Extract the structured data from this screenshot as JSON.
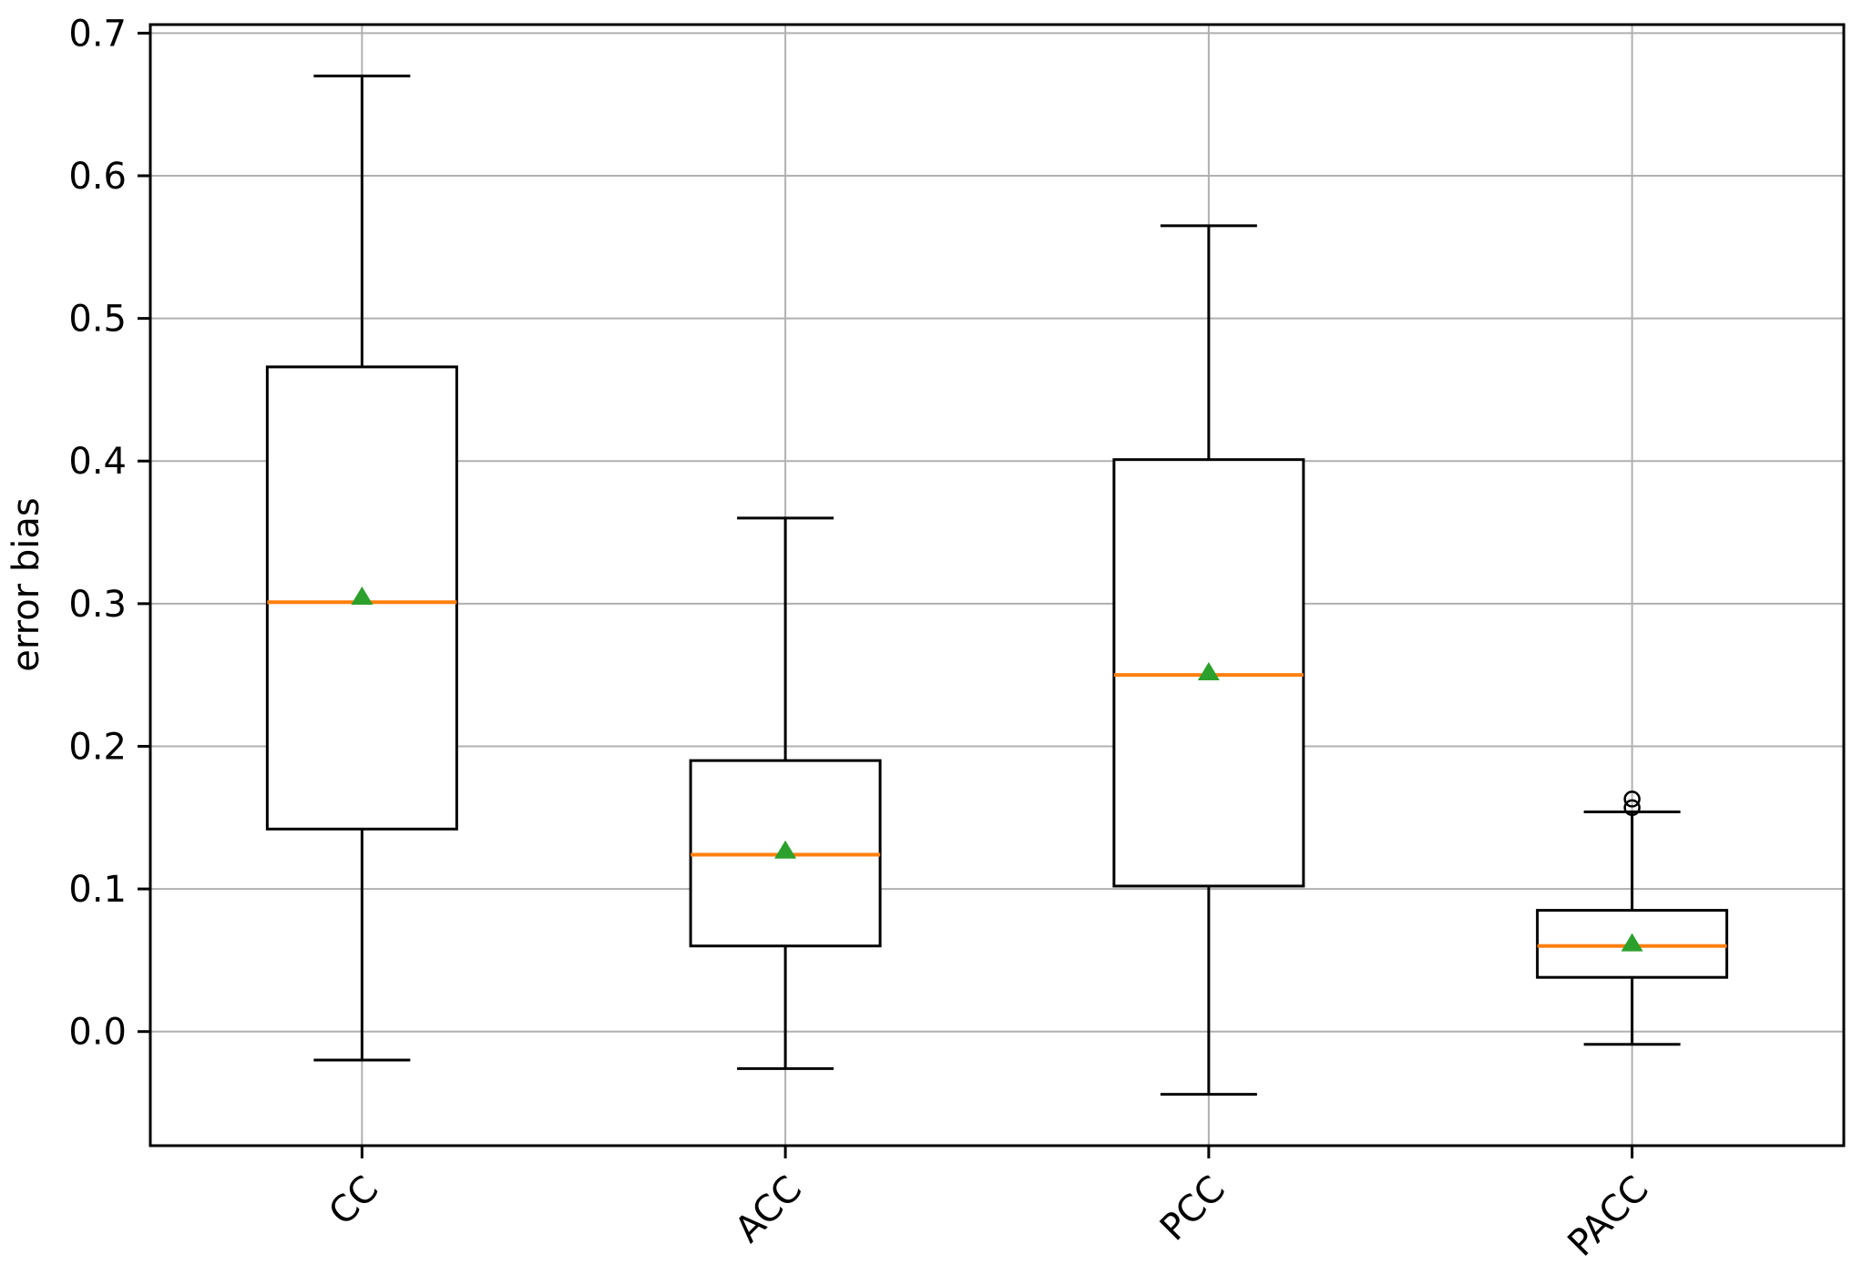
{
  "chart_data": {
    "type": "boxplot",
    "title": "",
    "xlabel": "",
    "ylabel": "error bias",
    "categories": [
      "CC",
      "ACC",
      "PCC",
      "PACC"
    ],
    "ylim": [
      -0.08,
      0.706
    ],
    "grid": true,
    "legend": "none",
    "yticks": [
      {
        "value": 0.0,
        "label": "0.0"
      },
      {
        "value": 0.1,
        "label": "0.1"
      },
      {
        "value": 0.2,
        "label": "0.2"
      },
      {
        "value": 0.3,
        "label": "0.3"
      },
      {
        "value": 0.4,
        "label": "0.4"
      },
      {
        "value": 0.5,
        "label": "0.5"
      },
      {
        "value": 0.6,
        "label": "0.6"
      },
      {
        "value": 0.7,
        "label": "0.7"
      }
    ],
    "series": [
      {
        "label": "CC",
        "whisker_low": -0.02,
        "q1": 0.142,
        "median": 0.301,
        "mean": 0.305,
        "q3": 0.466,
        "whisker_high": 0.67,
        "outliers": []
      },
      {
        "label": "ACC",
        "whisker_low": -0.026,
        "q1": 0.06,
        "median": 0.124,
        "mean": 0.127,
        "q3": 0.19,
        "whisker_high": 0.36,
        "outliers": []
      },
      {
        "label": "PCC",
        "whisker_low": -0.044,
        "q1": 0.102,
        "median": 0.25,
        "mean": 0.252,
        "q3": 0.401,
        "whisker_high": 0.565,
        "outliers": []
      },
      {
        "label": "PACC",
        "whisker_low": -0.009,
        "q1": 0.038,
        "median": 0.06,
        "mean": 0.062,
        "q3": 0.085,
        "whisker_high": 0.154,
        "outliers": [
          0.157,
          0.163
        ]
      }
    ],
    "colors": {
      "box": "#000000",
      "whisker": "#000000",
      "median": "#ff7f0e",
      "mean_marker": "#2ca02c",
      "outlier_edge": "#000000",
      "grid": "#b0b0b0",
      "spine": "#000000"
    },
    "marker_shapes": {
      "mean": "triangle-up",
      "outlier": "circle"
    }
  }
}
